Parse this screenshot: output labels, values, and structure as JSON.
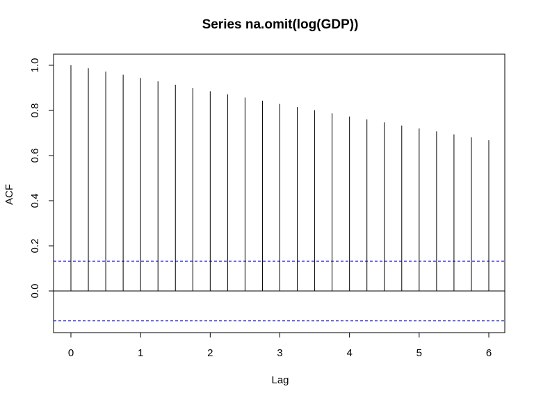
{
  "chart_data": {
    "type": "bar",
    "title": "Series  na.omit(log(GDP))",
    "xlabel": "Lag",
    "ylabel": "ACF",
    "xlim": [
      0,
      6
    ],
    "ylim": [
      -0.18,
      1.05
    ],
    "x_ticks": [
      "0",
      "1",
      "2",
      "3",
      "4",
      "5",
      "6"
    ],
    "y_ticks": [
      "0.0",
      "0.2",
      "0.4",
      "0.6",
      "0.8",
      "1.0"
    ],
    "lags": [
      0,
      0.25,
      0.5,
      0.75,
      1,
      1.25,
      1.5,
      1.75,
      2,
      2.25,
      2.5,
      2.75,
      3,
      3.25,
      3.5,
      3.75,
      4,
      4.25,
      4.5,
      4.75,
      5,
      5.25,
      5.5,
      5.75,
      6
    ],
    "acf": [
      1.0,
      0.987,
      0.972,
      0.958,
      0.944,
      0.929,
      0.914,
      0.899,
      0.885,
      0.871,
      0.857,
      0.843,
      0.829,
      0.815,
      0.801,
      0.787,
      0.773,
      0.76,
      0.747,
      0.733,
      0.72,
      0.707,
      0.694,
      0.681,
      0.668
    ],
    "confidence_band": 0.132,
    "grid": false,
    "colors": {
      "bars": "#000000",
      "confidence": "#0000cc",
      "axis": "#000000"
    }
  }
}
